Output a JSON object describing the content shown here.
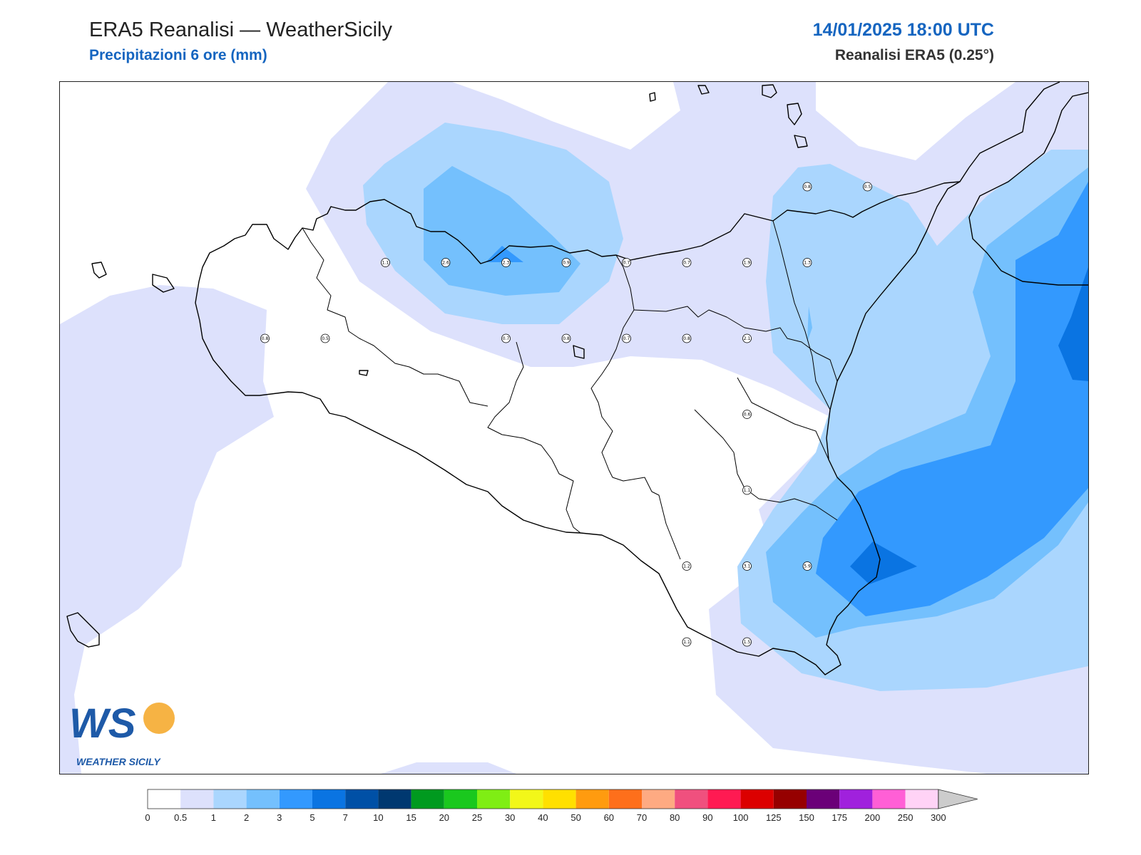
{
  "header": {
    "title": "ERA5 Reanalisi — WeatherSicily",
    "subtitle": "Precipitazioni 6 ore (mm)",
    "datetime": "14/01/2025 18:00 UTC",
    "source": "Reanalisi ERA5 (0.25°)"
  },
  "logo": {
    "text": "WEATHER SICILY",
    "initials": "WS"
  },
  "stations": [
    {
      "value": "1.1",
      "x": 13.5,
      "y": 37.98
    },
    {
      "value": "2.6",
      "x": 14.25,
      "y": 37.98
    },
    {
      "value": "2.3",
      "x": 15.0,
      "y": 37.98
    },
    {
      "value": "0.9",
      "x": 15.75,
      "y": 37.98
    },
    {
      "value": "0.7",
      "x": 16.5,
      "y": 37.98
    },
    {
      "value": "0.7",
      "x": 17.25,
      "y": 37.98
    },
    {
      "value": "1.9",
      "x": 18.0,
      "y": 37.98
    },
    {
      "value": "1.3",
      "x": 18.75,
      "y": 37.98
    },
    {
      "value": "0.8",
      "x": 18.75,
      "y": 38.48
    },
    {
      "value": "0.5",
      "x": 19.5,
      "y": 38.48
    },
    {
      "value": "0.8",
      "x": 12.0,
      "y": 37.48
    },
    {
      "value": "0.5",
      "x": 12.75,
      "y": 37.48
    },
    {
      "value": "0.7",
      "x": 15.0,
      "y": 37.48
    },
    {
      "value": "0.8",
      "x": 15.75,
      "y": 37.48
    },
    {
      "value": "0.7",
      "x": 16.5,
      "y": 37.48
    },
    {
      "value": "0.8",
      "x": 17.25,
      "y": 37.48
    },
    {
      "value": "2.1",
      "x": 18.0,
      "y": 37.48
    },
    {
      "value": "0.6",
      "x": 18.0,
      "y": 36.98
    },
    {
      "value": "1.1",
      "x": 18.0,
      "y": 36.48
    },
    {
      "value": "1.2",
      "x": 17.25,
      "y": 35.98
    },
    {
      "value": "3.1",
      "x": 18.0,
      "y": 35.98
    },
    {
      "value": "5.9",
      "x": 18.75,
      "y": 35.98
    },
    {
      "value": "1.1",
      "x": 17.25,
      "y": 35.48
    },
    {
      "value": "1.5",
      "x": 18.0,
      "y": 35.48
    }
  ],
  "colorbar": {
    "levels": [
      "0",
      "0.5",
      "1",
      "2",
      "3",
      "5",
      "7",
      "10",
      "15",
      "20",
      "25",
      "30",
      "40",
      "50",
      "60",
      "70",
      "80",
      "90",
      "100",
      "125",
      "150",
      "175",
      "200",
      "250",
      "300"
    ],
    "colors": [
      "#ffffff",
      "#dde1fc",
      "#aad6fe",
      "#74c0fd",
      "#3399fe",
      "#0a74e2",
      "#0050a6",
      "#003870",
      "#009a1f",
      "#1ac81e",
      "#7fee14",
      "#f2f719",
      "#ffe000",
      "#ff9b0f",
      "#fe6f1b",
      "#feaa82",
      "#f0507e",
      "#ff1a52",
      "#dc0000",
      "#960000",
      "#6b0078",
      "#a021dd",
      "#ff5fd6",
      "#ffd3f6"
    ],
    "extend_color": "#cccccc"
  },
  "fill_colors": {
    "level_05": "#dde1fc",
    "level_1": "#aad6fe",
    "level_2": "#74c0fd",
    "level_3": "#3399fe",
    "level_5": "#0a74e2"
  }
}
